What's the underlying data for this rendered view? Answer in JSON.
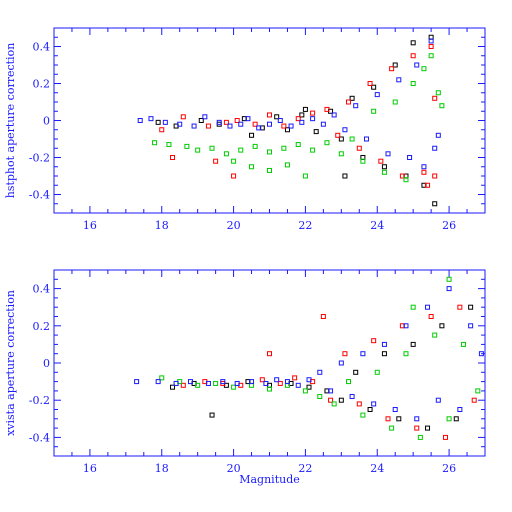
{
  "colors": {
    "axis": "#1a1aff",
    "black": "#000000",
    "red": "#ff0000",
    "green": "#00cc00",
    "blue": "#1a1aff"
  },
  "chart_data": [
    {
      "type": "scatter",
      "title": "",
      "xlabel": "",
      "ylabel": "hstphot aperture correction",
      "xlim": [
        15,
        27
      ],
      "ylim": [
        -0.5,
        0.5
      ],
      "x_ticks": [
        "16",
        "18",
        "20",
        "22",
        "24",
        "26"
      ],
      "y_ticks": [
        "-0.4",
        "-0.2",
        "0",
        "0.2",
        "0.4"
      ],
      "grid": false,
      "series": [
        {
          "color": "black",
          "points": [
            [
              17.9,
              -0.01
            ],
            [
              18.4,
              -0.03
            ],
            [
              19.1,
              0.0
            ],
            [
              19.6,
              -0.02
            ],
            [
              20.3,
              0.01
            ],
            [
              20.8,
              -0.04
            ],
            [
              21.2,
              0.02
            ],
            [
              21.5,
              -0.05
            ],
            [
              21.9,
              0.03
            ],
            [
              22.3,
              -0.06
            ],
            [
              22.7,
              0.05
            ],
            [
              23.0,
              -0.1
            ],
            [
              23.3,
              0.12
            ],
            [
              23.6,
              -0.2
            ],
            [
              23.9,
              0.18
            ],
            [
              24.2,
              -0.25
            ],
            [
              24.5,
              0.3
            ],
            [
              24.8,
              -0.3
            ],
            [
              25.0,
              0.42
            ],
            [
              25.3,
              -0.35
            ],
            [
              25.5,
              0.45
            ],
            [
              25.6,
              -0.45
            ],
            [
              20.5,
              -0.08
            ],
            [
              22.0,
              0.06
            ],
            [
              23.1,
              -0.3
            ]
          ]
        },
        {
          "color": "red",
          "points": [
            [
              18.0,
              -0.05
            ],
            [
              18.6,
              0.02
            ],
            [
              19.3,
              -0.03
            ],
            [
              19.8,
              -0.01
            ],
            [
              20.1,
              0.0
            ],
            [
              20.6,
              -0.02
            ],
            [
              21.0,
              0.03
            ],
            [
              21.4,
              -0.03
            ],
            [
              21.8,
              0.01
            ],
            [
              22.2,
              0.04
            ],
            [
              22.6,
              0.06
            ],
            [
              22.9,
              -0.08
            ],
            [
              23.2,
              0.1
            ],
            [
              23.5,
              -0.15
            ],
            [
              23.8,
              0.2
            ],
            [
              24.1,
              -0.22
            ],
            [
              24.4,
              0.28
            ],
            [
              24.7,
              -0.3
            ],
            [
              25.0,
              0.35
            ],
            [
              25.3,
              -0.28
            ],
            [
              25.5,
              0.4
            ],
            [
              25.6,
              -0.3
            ],
            [
              18.3,
              -0.2
            ],
            [
              19.5,
              -0.22
            ],
            [
              20.0,
              -0.3
            ],
            [
              25.4,
              -0.35
            ],
            [
              25.6,
              0.12
            ]
          ]
        },
        {
          "color": "green",
          "points": [
            [
              17.8,
              -0.12
            ],
            [
              18.2,
              -0.13
            ],
            [
              18.7,
              -0.14
            ],
            [
              19.0,
              -0.16
            ],
            [
              19.4,
              -0.15
            ],
            [
              19.8,
              -0.18
            ],
            [
              20.2,
              -0.16
            ],
            [
              20.6,
              -0.14
            ],
            [
              21.0,
              -0.17
            ],
            [
              21.4,
              -0.15
            ],
            [
              21.8,
              -0.13
            ],
            [
              22.2,
              -0.16
            ],
            [
              22.6,
              -0.12
            ],
            [
              23.0,
              -0.18
            ],
            [
              23.3,
              -0.1
            ],
            [
              23.6,
              -0.22
            ],
            [
              23.9,
              0.05
            ],
            [
              24.2,
              -0.28
            ],
            [
              24.5,
              0.1
            ],
            [
              24.8,
              -0.32
            ],
            [
              25.0,
              0.2
            ],
            [
              25.3,
              0.28
            ],
            [
              25.5,
              0.35
            ],
            [
              25.7,
              0.15
            ],
            [
              20.0,
              -0.22
            ],
            [
              20.5,
              -0.25
            ],
            [
              21.0,
              -0.27
            ],
            [
              21.5,
              -0.24
            ],
            [
              22.0,
              -0.3
            ],
            [
              25.8,
              0.08
            ]
          ]
        },
        {
          "color": "blue",
          "points": [
            [
              17.4,
              0.0
            ],
            [
              17.7,
              0.01
            ],
            [
              18.1,
              -0.01
            ],
            [
              18.5,
              -0.02
            ],
            [
              18.9,
              -0.03
            ],
            [
              19.2,
              0.02
            ],
            [
              19.6,
              -0.01
            ],
            [
              19.9,
              -0.03
            ],
            [
              20.2,
              -0.02
            ],
            [
              20.4,
              0.01
            ],
            [
              20.7,
              -0.04
            ],
            [
              21.0,
              -0.02
            ],
            [
              21.3,
              0.0
            ],
            [
              21.6,
              -0.03
            ],
            [
              21.9,
              -0.01
            ],
            [
              22.2,
              0.01
            ],
            [
              22.5,
              -0.02
            ],
            [
              22.8,
              0.03
            ],
            [
              23.1,
              -0.05
            ],
            [
              23.4,
              0.08
            ],
            [
              23.7,
              -0.1
            ],
            [
              24.0,
              0.14
            ],
            [
              24.3,
              -0.18
            ],
            [
              24.6,
              0.22
            ],
            [
              24.9,
              -0.2
            ],
            [
              25.1,
              0.3
            ],
            [
              25.3,
              -0.25
            ],
            [
              25.5,
              0.43
            ],
            [
              25.6,
              -0.15
            ],
            [
              25.7,
              -0.08
            ]
          ]
        }
      ]
    },
    {
      "type": "scatter",
      "title": "",
      "xlabel": "Magnitude",
      "ylabel": "xvista aperture correction",
      "xlim": [
        15,
        27
      ],
      "ylim": [
        -0.5,
        0.5
      ],
      "x_ticks": [
        "16",
        "18",
        "20",
        "22",
        "24",
        "26"
      ],
      "y_ticks": [
        "-0.4",
        "-0.2",
        "0",
        "0.2",
        "0.4"
      ],
      "grid": false,
      "series": [
        {
          "color": "black",
          "points": [
            [
              18.3,
              -0.13
            ],
            [
              18.9,
              -0.11
            ],
            [
              19.4,
              -0.28
            ],
            [
              19.8,
              -0.12
            ],
            [
              20.4,
              -0.1
            ],
            [
              21.0,
              -0.12
            ],
            [
              21.6,
              -0.11
            ],
            [
              22.1,
              -0.13
            ],
            [
              22.6,
              -0.15
            ],
            [
              23.0,
              -0.2
            ],
            [
              23.4,
              -0.05
            ],
            [
              23.8,
              -0.25
            ],
            [
              24.2,
              0.05
            ],
            [
              24.6,
              -0.3
            ],
            [
              25.0,
              0.1
            ],
            [
              25.4,
              -0.35
            ],
            [
              25.8,
              0.2
            ],
            [
              26.2,
              -0.3
            ],
            [
              26.6,
              0.3
            ]
          ]
        },
        {
          "color": "red",
          "points": [
            [
              18.6,
              -0.12
            ],
            [
              19.2,
              -0.1
            ],
            [
              19.7,
              -0.11
            ],
            [
              20.2,
              -0.12
            ],
            [
              20.8,
              -0.09
            ],
            [
              21.3,
              -0.11
            ],
            [
              21.7,
              -0.08
            ],
            [
              22.2,
              -0.1
            ],
            [
              22.7,
              -0.2
            ],
            [
              23.1,
              0.05
            ],
            [
              23.5,
              -0.22
            ],
            [
              23.9,
              0.12
            ],
            [
              24.3,
              -0.3
            ],
            [
              24.7,
              0.2
            ],
            [
              25.1,
              -0.35
            ],
            [
              25.5,
              0.25
            ],
            [
              25.9,
              -0.4
            ],
            [
              26.3,
              0.3
            ],
            [
              26.7,
              -0.2
            ],
            [
              21.0,
              0.05
            ],
            [
              22.5,
              0.25
            ]
          ]
        },
        {
          "color": "green",
          "points": [
            [
              18.0,
              -0.08
            ],
            [
              18.5,
              -0.1
            ],
            [
              19.0,
              -0.12
            ],
            [
              19.5,
              -0.11
            ],
            [
              20.0,
              -0.13
            ],
            [
              20.5,
              -0.12
            ],
            [
              21.0,
              -0.14
            ],
            [
              21.5,
              -0.12
            ],
            [
              22.0,
              -0.15
            ],
            [
              22.4,
              -0.18
            ],
            [
              22.8,
              -0.22
            ],
            [
              23.2,
              -0.1
            ],
            [
              23.6,
              -0.28
            ],
            [
              24.0,
              -0.05
            ],
            [
              24.4,
              -0.35
            ],
            [
              24.8,
              0.05
            ],
            [
              25.2,
              -0.4
            ],
            [
              25.6,
              0.15
            ],
            [
              26.0,
              -0.3
            ],
            [
              26.4,
              0.1
            ],
            [
              26.8,
              -0.15
            ],
            [
              25.0,
              0.3
            ],
            [
              26.0,
              0.45
            ]
          ]
        },
        {
          "color": "blue",
          "points": [
            [
              17.3,
              -0.1
            ],
            [
              17.9,
              -0.1
            ],
            [
              18.4,
              -0.11
            ],
            [
              18.8,
              -0.1
            ],
            [
              19.3,
              -0.11
            ],
            [
              19.7,
              -0.1
            ],
            [
              20.1,
              -0.11
            ],
            [
              20.5,
              -0.1
            ],
            [
              20.9,
              -0.11
            ],
            [
              21.2,
              -0.09
            ],
            [
              21.5,
              -0.1
            ],
            [
              21.8,
              -0.12
            ],
            [
              22.1,
              -0.09
            ],
            [
              22.4,
              -0.05
            ],
            [
              22.7,
              -0.15
            ],
            [
              23.0,
              0.0
            ],
            [
              23.3,
              -0.18
            ],
            [
              23.6,
              0.05
            ],
            [
              23.9,
              -0.22
            ],
            [
              24.2,
              0.1
            ],
            [
              24.5,
              -0.25
            ],
            [
              24.8,
              0.2
            ],
            [
              25.1,
              -0.3
            ],
            [
              25.4,
              0.3
            ],
            [
              25.7,
              -0.2
            ],
            [
              26.0,
              0.4
            ],
            [
              26.3,
              -0.25
            ],
            [
              26.6,
              0.2
            ],
            [
              26.9,
              0.05
            ]
          ]
        }
      ]
    }
  ]
}
